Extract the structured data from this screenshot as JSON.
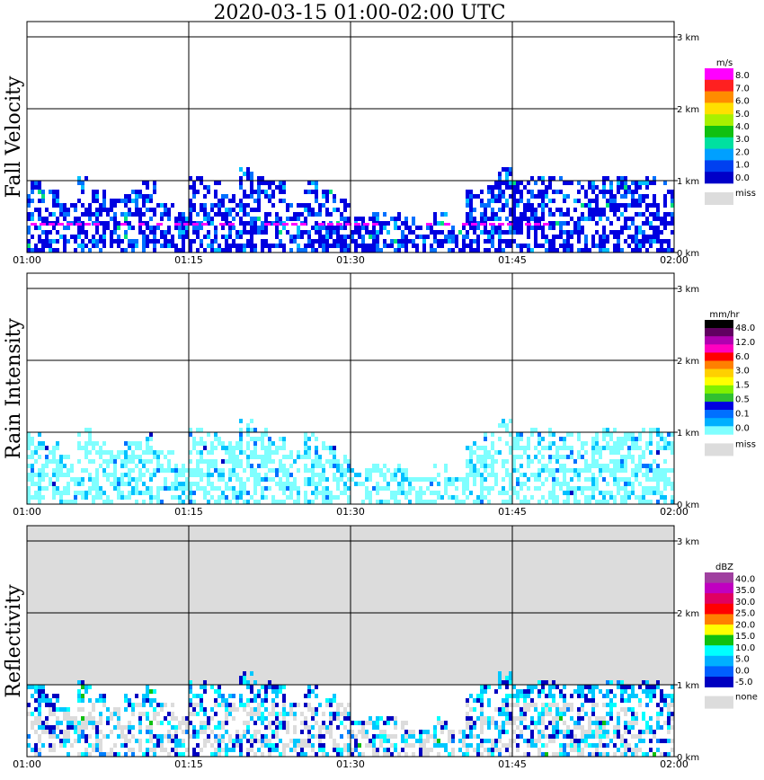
{
  "title": "2020-03-15   01:00-02:00 UTC",
  "time_ticks": [
    "01:00",
    "01:15",
    "01:30",
    "01:45",
    "02:00"
  ],
  "height_ticks": [
    "0 km",
    "1 km",
    "2 km",
    "3 km"
  ],
  "chart_data": [
    {
      "type": "heatmap",
      "panel": "fall-velocity",
      "ylabel": "Fall Velocity",
      "xlim": [
        "01:00",
        "02:00"
      ],
      "ylim_km": [
        0,
        3.2
      ],
      "grid": true,
      "legend_position": "right",
      "colorbar_unit": "m/s",
      "colorbar_labels": [
        "8.0",
        "7.0",
        "6.0",
        "5.0",
        "4.0",
        "3.0",
        "2.0",
        "1.0",
        "0.0"
      ],
      "colorbar_colors": [
        "#ff00ff",
        "#ff2020",
        "#ff8c00",
        "#ffe000",
        "#a8f000",
        "#10c010",
        "#00e0a0",
        "#00a0ff",
        "#0040f0",
        "#0000c8"
      ],
      "missing_label": "miss",
      "missing_color": "#dcdcdc",
      "echo_top_km": [
        1.0,
        0.9,
        0.7,
        1.1,
        0.9,
        0.8,
        0.9,
        1.0,
        0.8,
        0.6,
        1.1,
        1.0,
        0.9,
        1.2,
        1.1,
        1.0,
        0.8,
        1.0,
        0.9,
        0.8,
        0.5,
        0.6,
        0.6,
        0.5,
        0.4,
        0.6,
        0.4,
        0.9,
        1.0,
        1.2,
        1.0,
        1.1,
        1.1,
        1.0,
        1.0,
        1.1,
        1.1,
        1.0,
        1.1,
        1.0
      ],
      "dominant_value": 0.5
    },
    {
      "type": "heatmap",
      "panel": "rain-intensity",
      "ylabel": "Rain Intensity",
      "xlim": [
        "01:00",
        "02:00"
      ],
      "ylim_km": [
        0,
        3.2
      ],
      "grid": true,
      "legend_position": "right",
      "colorbar_unit": "mm/hr",
      "colorbar_labels": [
        "48.0",
        "12.0",
        "6.0",
        "3.0",
        "1.5",
        "0.5",
        "0.1",
        "0.0"
      ],
      "colorbar_colors": [
        "#000000",
        "#600060",
        "#b000b0",
        "#ff00c0",
        "#ff0000",
        "#ff8000",
        "#ffd000",
        "#ffff00",
        "#80f000",
        "#30c030",
        "#0000e0",
        "#0070ff",
        "#00b0ff",
        "#80ffff"
      ],
      "missing_label": "miss",
      "missing_color": "#dcdcdc",
      "echo_top_km": [
        1.0,
        0.9,
        0.7,
        1.1,
        0.9,
        0.8,
        0.9,
        1.0,
        0.8,
        0.6,
        1.1,
        1.0,
        0.9,
        1.2,
        1.1,
        1.0,
        0.8,
        1.0,
        0.9,
        0.8,
        0.5,
        0.6,
        0.6,
        0.5,
        0.4,
        0.6,
        0.4,
        0.9,
        1.0,
        1.2,
        1.0,
        1.1,
        1.1,
        1.0,
        1.0,
        1.1,
        1.1,
        1.0,
        1.1,
        1.0
      ],
      "dominant_value": 0.1
    },
    {
      "type": "heatmap",
      "panel": "reflectivity",
      "ylabel": "Reflectivity",
      "xlim": [
        "01:00",
        "02:00"
      ],
      "ylim_km": [
        0,
        3.2
      ],
      "grid": true,
      "legend_position": "right",
      "colorbar_unit": "dBZ",
      "colorbar_labels": [
        "40.0",
        "35.0",
        "30.0",
        "25.0",
        "20.0",
        "15.0",
        "10.0",
        "5.0",
        "0.0",
        "-5.0"
      ],
      "colorbar_colors": [
        "#a040a0",
        "#c000c0",
        "#e00060",
        "#ff0000",
        "#ff8000",
        "#ffff00",
        "#10c010",
        "#00ffff",
        "#00b0ff",
        "#0060ff",
        "#0000c0"
      ],
      "missing_label": "none",
      "missing_color": "#dcdcdc",
      "echo_top_km": [
        1.0,
        0.9,
        0.7,
        1.1,
        0.9,
        0.8,
        0.9,
        1.0,
        0.8,
        0.6,
        1.1,
        1.0,
        0.9,
        1.2,
        1.1,
        1.0,
        0.8,
        1.0,
        0.9,
        0.8,
        0.5,
        0.6,
        0.6,
        0.5,
        0.4,
        0.6,
        0.4,
        0.9,
        1.0,
        1.2,
        1.0,
        1.1,
        1.1,
        1.0,
        1.0,
        1.1,
        1.1,
        1.0,
        1.1,
        1.0
      ],
      "dominant_value": 5.0
    }
  ]
}
